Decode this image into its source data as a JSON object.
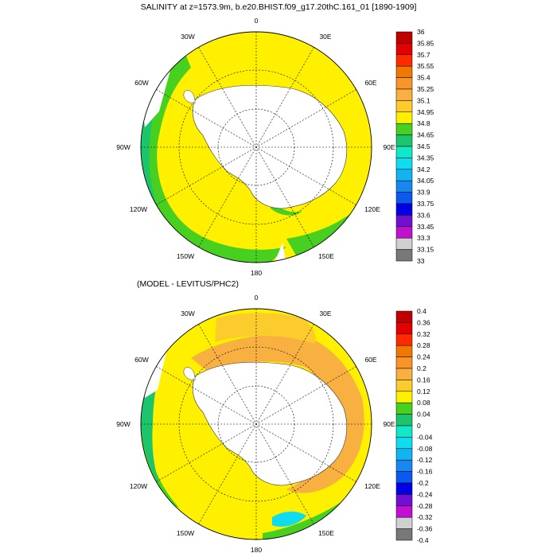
{
  "panels": [
    {
      "id": "top",
      "title": "SALINITY at z=1573.9m, b.e20.BHIST.f09_g17.20thC.161_01 [1890-1909]",
      "lon_labels": [
        "0",
        "30E",
        "60E",
        "90E",
        "120E",
        "150E",
        "180",
        "150W",
        "120W",
        "90W",
        "60W",
        "30W"
      ],
      "colorbar": {
        "labels": [
          "36",
          "35.85",
          "35.7",
          "35.55",
          "35.4",
          "35.25",
          "35.1",
          "34.95",
          "34.8",
          "34.65",
          "34.5",
          "34.35",
          "34.2",
          "34.05",
          "33.9",
          "33.75",
          "33.6",
          "33.45",
          "33.3",
          "33.15",
          "33"
        ],
        "colors": [
          "#c00000",
          "#e40000",
          "#ff2a00",
          "#f07800",
          "#f89428",
          "#fab040",
          "#fccc2c",
          "#fff000",
          "#48d020",
          "#1cc46c",
          "#10e8c8",
          "#10dcf0",
          "#10b4f0",
          "#1888f0",
          "#0a5af0",
          "#0000e6",
          "#7010d0",
          "#c010d0",
          "#d0d0d0",
          "#787878"
        ]
      },
      "dominant": {
        "ocean": "#fff000",
        "north": "#48d020",
        "west": "#1cc46c"
      }
    },
    {
      "id": "bottom",
      "title": "(MODEL - LEVITUS/PHC2)",
      "lon_labels": [
        "0",
        "30E",
        "60E",
        "90E",
        "120E",
        "150E",
        "180",
        "150W",
        "120W",
        "90W",
        "60W",
        "30W"
      ],
      "colorbar": {
        "labels": [
          "0.4",
          "0.36",
          "0.32",
          "0.28",
          "0.24",
          "0.2",
          "0.16",
          "0.12",
          "0.08",
          "0.04",
          "0",
          "-0.04",
          "-0.08",
          "-0.12",
          "-0.16",
          "-0.2",
          "-0.24",
          "-0.28",
          "-0.32",
          "-0.36",
          "-0.4"
        ],
        "colors": [
          "#c00000",
          "#e40000",
          "#ff2a00",
          "#f07800",
          "#f89428",
          "#fab040",
          "#fccc2c",
          "#fff000",
          "#48d020",
          "#1cc46c",
          "#10e8c8",
          "#10dcf0",
          "#10b4f0",
          "#1888f0",
          "#0a5af0",
          "#0000e6",
          "#7010d0",
          "#c010d0",
          "#d0d0d0",
          "#787878"
        ]
      },
      "dominant": {
        "ocean": "#fff000",
        "shelf": "#f8b040",
        "north": "#48d020",
        "west": "#1cc46c"
      }
    }
  ]
}
